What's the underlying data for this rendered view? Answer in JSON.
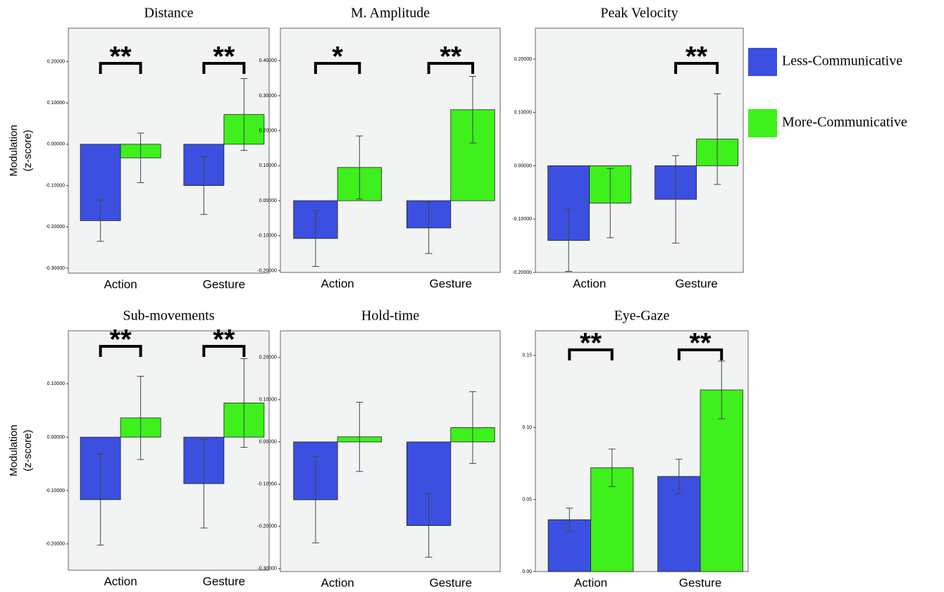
{
  "legend": [
    {
      "name": "Less-Communicative",
      "color": "#3b4fe0"
    },
    {
      "name": "More-Communicative",
      "color": "#3ef01c"
    }
  ],
  "chart_data": [
    {
      "type": "bar",
      "title": "Distance",
      "ylabel": [
        "Modulation",
        "(z-score)"
      ],
      "categories": [
        "Action",
        "Gesture"
      ],
      "series": [
        {
          "values": [
            -0.185,
            -0.1
          ],
          "errors": [
            0.05,
            0.07
          ]
        },
        {
          "values": [
            -0.033,
            0.072
          ],
          "errors": [
            0.06,
            0.087
          ]
        }
      ],
      "annotations": [
        "**",
        "**"
      ],
      "ylim": [
        -0.312,
        0.281
      ],
      "yticks": [
        {
          "value": -0.3,
          "label": "-0.30000"
        },
        {
          "value": -0.2,
          "label": "-0.20000"
        },
        {
          "value": -0.1,
          "label": "-0.10000"
        },
        {
          "value": 0,
          "label": "0.00000"
        },
        {
          "value": 0.1,
          "label": "0.10000"
        },
        {
          "value": 0.2,
          "label": "0.20000"
        }
      ]
    },
    {
      "type": "bar",
      "title": "M. Amplitude",
      "categories": [
        "Action",
        "Gesture"
      ],
      "series": [
        {
          "values": [
            -0.108,
            -0.078
          ],
          "errors": [
            0.08,
            0.073
          ]
        },
        {
          "values": [
            0.095,
            0.26
          ],
          "errors": [
            0.09,
            0.095
          ]
        }
      ],
      "annotations": [
        "*",
        "**"
      ],
      "ylim": [
        -0.205,
        0.493
      ],
      "yticks": [
        {
          "value": -0.2,
          "label": "-0.20000"
        },
        {
          "value": -0.1,
          "label": "-0.10000"
        },
        {
          "value": 0,
          "label": "0.00000"
        },
        {
          "value": 0.1,
          "label": "0.10000"
        },
        {
          "value": 0.2,
          "label": "0.20000"
        },
        {
          "value": 0.3,
          "label": "0.30000"
        },
        {
          "value": 0.4,
          "label": "0.40000"
        }
      ]
    },
    {
      "type": "bar",
      "title": "Peak Velocity",
      "categories": [
        "Action",
        "Gesture"
      ],
      "series": [
        {
          "values": [
            -0.14,
            -0.063
          ],
          "errors": [
            0.058,
            0.082
          ]
        },
        {
          "values": [
            -0.07,
            0.05
          ],
          "errors": [
            0.065,
            0.085
          ]
        }
      ],
      "annotations": [
        null,
        "**"
      ],
      "ylim": [
        -0.2,
        0.258
      ],
      "yticks": [
        {
          "value": -0.2,
          "label": "-0.20000"
        },
        {
          "value": -0.1,
          "label": "-0.10000"
        },
        {
          "value": 0,
          "label": "0.00000"
        },
        {
          "value": 0.1,
          "label": "0.10000"
        },
        {
          "value": 0.2,
          "label": "0.20000"
        }
      ]
    },
    {
      "type": "bar",
      "title": "Sub-movements",
      "ylabel": [
        "Modulation",
        "(z-score)"
      ],
      "categories": [
        "Action",
        "Gesture"
      ],
      "series": [
        {
          "values": [
            -0.117,
            -0.087
          ],
          "errors": [
            0.085,
            0.083
          ]
        },
        {
          "values": [
            0.036,
            0.064
          ],
          "errors": [
            0.078,
            0.083
          ]
        }
      ],
      "annotations": [
        "**",
        "**"
      ],
      "ylim": [
        -0.249,
        0.199
      ],
      "yticks": [
        {
          "value": -0.2,
          "label": "-0.20000"
        },
        {
          "value": -0.1,
          "label": "-0.10000"
        },
        {
          "value": 0,
          "label": "0.00000"
        },
        {
          "value": 0.1,
          "label": "0.10000"
        }
      ]
    },
    {
      "type": "bar",
      "title": "Hold-time",
      "categories": [
        "Action",
        "Gesture"
      ],
      "series": [
        {
          "values": [
            -0.137,
            -0.198
          ],
          "errors": [
            0.102,
            0.075
          ]
        },
        {
          "values": [
            0.012,
            0.034
          ],
          "errors": [
            0.082,
            0.085
          ]
        }
      ],
      "ylim": [
        -0.307,
        0.263
      ],
      "yticks": [
        {
          "value": -0.3,
          "label": "-0.30000"
        },
        {
          "value": -0.2,
          "label": "-0.20000"
        },
        {
          "value": -0.1,
          "label": "-0.10000"
        },
        {
          "value": 0,
          "label": "0.00000"
        },
        {
          "value": 0.1,
          "label": "0.10000"
        },
        {
          "value": 0.2,
          "label": "0.20000"
        }
      ]
    },
    {
      "type": "bar",
      "title": "Eye-Gaze",
      "categories": [
        "Action",
        "Gesture"
      ],
      "series": [
        {
          "values": [
            0.036,
            0.066
          ],
          "errors": [
            0.008,
            0.012
          ]
        },
        {
          "values": [
            0.072,
            0.126
          ],
          "errors": [
            0.013,
            0.02
          ]
        }
      ],
      "annotations": [
        "**",
        "**"
      ],
      "ylim": [
        0,
        0.167
      ],
      "yticks": [
        {
          "value": 0,
          "label": "0.00"
        },
        0.05,
        {
          "value": 0.1,
          "label": "0.10"
        },
        0.15
      ]
    }
  ]
}
